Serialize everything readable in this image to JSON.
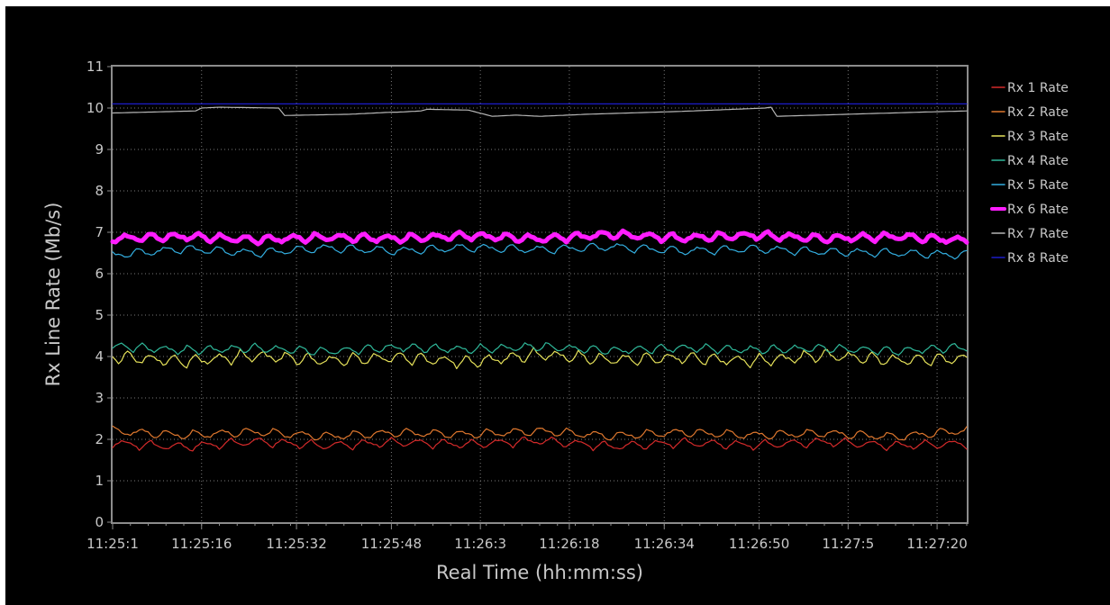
{
  "chart_data": {
    "type": "line",
    "xlabel": "Real Time (hh:mm:ss)",
    "ylabel": "Rx Line Rate (Mb/s)",
    "ylim": [
      0,
      11
    ],
    "y_ticks": [
      0,
      1,
      2,
      3,
      4,
      5,
      6,
      7,
      8,
      9,
      10,
      11
    ],
    "xlim_seconds": [
      0,
      144
    ],
    "x_ticks": [
      {
        "label": "11:25:1",
        "t": 0
      },
      {
        "label": "11:25:16",
        "t": 15
      },
      {
        "label": "11:25:32",
        "t": 31
      },
      {
        "label": "11:25:48",
        "t": 47
      },
      {
        "label": "11:26:3",
        "t": 62
      },
      {
        "label": "11:26:18",
        "t": 77
      },
      {
        "label": "11:26:34",
        "t": 93
      },
      {
        "label": "11:26:50",
        "t": 109
      },
      {
        "label": "11:27:5",
        "t": 124
      },
      {
        "label": "11:27:20",
        "t": 139
      }
    ],
    "grid": true,
    "legend_position": "right",
    "series": [
      {
        "name": "Rx 1 Rate",
        "color": "#d42a2a",
        "highlight": false,
        "base": 1.9,
        "amp": 0.13,
        "period": 4.5,
        "x": [
          0,
          12,
          24,
          36,
          48,
          60,
          72,
          84,
          96,
          108,
          120,
          132,
          144
        ],
        "values": [
          1.9,
          1.82,
          1.95,
          1.85,
          1.93,
          1.88,
          1.97,
          1.83,
          1.92,
          1.86,
          1.94,
          1.85,
          1.9
        ]
      },
      {
        "name": "Rx 2 Rate",
        "color": "#e0782e",
        "highlight": false,
        "base": 2.12,
        "amp": 0.13,
        "period": 4.5,
        "x": [
          0,
          12,
          24,
          36,
          48,
          60,
          72,
          84,
          96,
          108,
          120,
          132,
          144
        ],
        "values": [
          2.2,
          2.1,
          2.18,
          2.07,
          2.16,
          2.12,
          2.2,
          2.08,
          2.17,
          2.1,
          2.15,
          2.06,
          2.22
        ]
      },
      {
        "name": "Rx 3 Rate",
        "color": "#e6e25a",
        "highlight": false,
        "base": 3.95,
        "amp": 0.18,
        "period": 3.8,
        "x": [
          0,
          12,
          24,
          36,
          48,
          60,
          72,
          84,
          96,
          108,
          120,
          132,
          144
        ],
        "values": [
          4.0,
          3.88,
          4.02,
          3.9,
          3.98,
          3.86,
          4.05,
          3.92,
          3.97,
          3.89,
          4.03,
          3.91,
          3.95
        ]
      },
      {
        "name": "Rx 4 Rate",
        "color": "#2fb89a",
        "highlight": false,
        "base": 4.18,
        "amp": 0.13,
        "period": 3.8,
        "x": [
          0,
          12,
          24,
          36,
          48,
          60,
          72,
          84,
          96,
          108,
          120,
          132,
          144
        ],
        "values": [
          4.25,
          4.15,
          4.2,
          4.12,
          4.22,
          4.17,
          4.24,
          4.14,
          4.21,
          4.16,
          4.2,
          4.13,
          4.23
        ]
      },
      {
        "name": "Rx 5 Rate",
        "color": "#33aee0",
        "highlight": false,
        "base": 6.52,
        "amp": 0.13,
        "period": 4.5,
        "x": [
          0,
          12,
          24,
          36,
          48,
          60,
          72,
          84,
          96,
          108,
          120,
          132,
          144
        ],
        "values": [
          6.45,
          6.6,
          6.5,
          6.62,
          6.55,
          6.63,
          6.58,
          6.65,
          6.55,
          6.6,
          6.53,
          6.5,
          6.45
        ]
      },
      {
        "name": "Rx 6 Rate",
        "color": "#ff1dff",
        "highlight": true,
        "base": 6.87,
        "amp": 0.12,
        "period": 4.0,
        "x": [
          0,
          12,
          24,
          36,
          48,
          60,
          72,
          84,
          96,
          108,
          120,
          132,
          144
        ],
        "values": [
          6.85,
          6.9,
          6.82,
          6.88,
          6.85,
          6.92,
          6.84,
          6.95,
          6.86,
          6.93,
          6.85,
          6.9,
          6.8
        ]
      },
      {
        "name": "Rx 7 Rate",
        "color": "#b6b6b6",
        "highlight": false,
        "base": 9.9,
        "amp": 0,
        "period": 1,
        "x": [
          0,
          14,
          15,
          18,
          28,
          29,
          40,
          47,
          48,
          52,
          53,
          60,
          64,
          68,
          72,
          80,
          96,
          110,
          111,
          112,
          124,
          136,
          144
        ],
        "values": [
          9.88,
          9.93,
          10.0,
          10.02,
          10.0,
          9.82,
          9.85,
          9.9,
          9.9,
          9.93,
          9.97,
          9.95,
          9.8,
          9.83,
          9.8,
          9.85,
          9.92,
          10.0,
          10.02,
          9.8,
          9.85,
          9.9,
          9.93
        ]
      },
      {
        "name": "Rx 8 Rate",
        "color": "#1c1cc8",
        "highlight": false,
        "base": 10.1,
        "amp": 0,
        "period": 1,
        "x": [
          0,
          144
        ],
        "values": [
          10.1,
          10.1
        ]
      }
    ]
  }
}
